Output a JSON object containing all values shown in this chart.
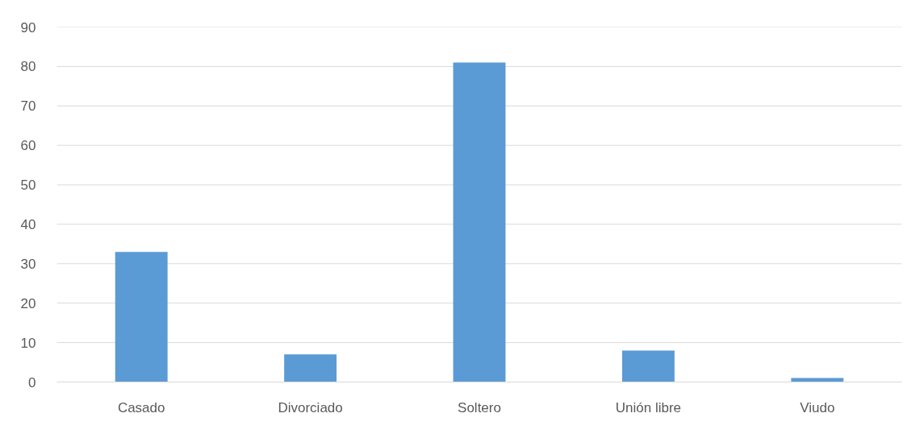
{
  "chart_data": {
    "type": "bar",
    "categories": [
      "Casado",
      "Divorciado",
      "Soltero",
      "Unión libre",
      "Viudo"
    ],
    "values": [
      33,
      7,
      81,
      8,
      1
    ],
    "color": "#5b9bd5",
    "ylim": [
      0,
      90
    ],
    "yticks": [
      0,
      10,
      20,
      30,
      40,
      50,
      60,
      70,
      80,
      90
    ],
    "grid": "y"
  }
}
